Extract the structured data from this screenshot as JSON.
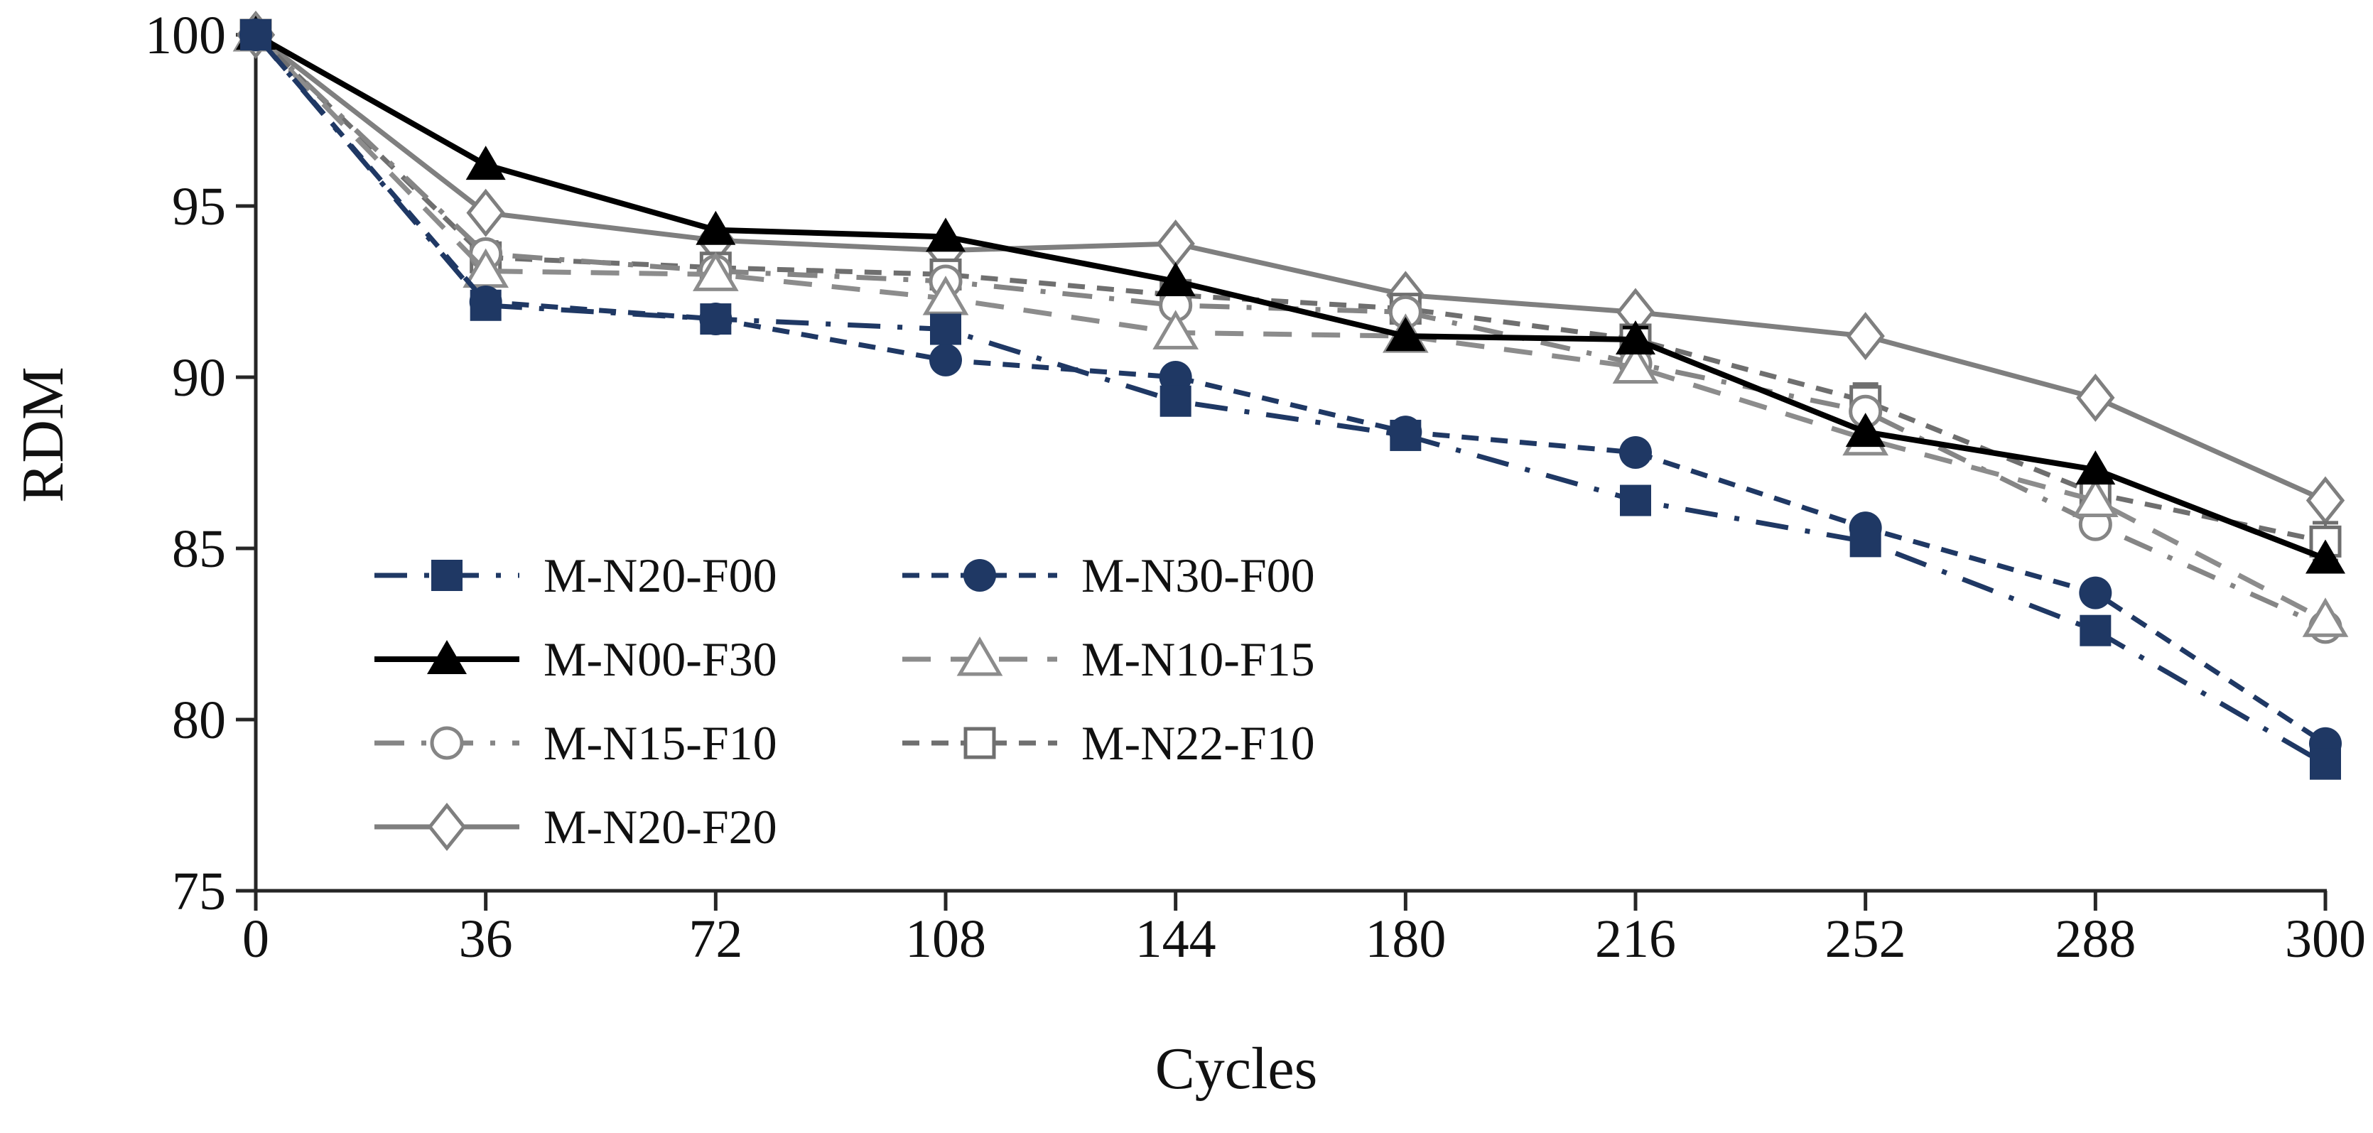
{
  "figure": {
    "background": "#ffffff"
  },
  "chart_data": {
    "type": "line",
    "title": "",
    "xlabel": "Cycles",
    "ylabel": "RDM",
    "x_categories": [
      0,
      36,
      72,
      108,
      144,
      180,
      216,
      252,
      288,
      300
    ],
    "x_tick_labels": [
      "0",
      "36",
      "72",
      "108",
      "144",
      "180",
      "216",
      "252",
      "288",
      "300"
    ],
    "yticks": [
      75,
      80,
      85,
      90,
      95,
      100
    ],
    "ytick_labels": [
      "75",
      "80",
      "85",
      "90",
      "95",
      "100"
    ],
    "ylim": [
      75,
      100
    ],
    "grid": false,
    "axis_color": "#262626",
    "legend_position": "inside-left",
    "legend_rows": [
      [
        "M-N20-F00",
        "M-N30-F00"
      ],
      [
        "M-N00-F30",
        "M-N10-F15"
      ],
      [
        "M-N15-F10",
        "M-N22-F10"
      ],
      [
        "M-N20-F20"
      ]
    ],
    "series": [
      {
        "name": "M-N20-F00",
        "color": "#1f3864",
        "line_style": "dash-dot",
        "dash": "46 24 7 24",
        "marker": "square",
        "marker_fill": "filled",
        "values": [
          100,
          92.1,
          91.7,
          91.4,
          89.3,
          88.3,
          86.4,
          85.2,
          82.6,
          78.7
        ],
        "errors": null
      },
      {
        "name": "M-N30-F00",
        "color": "#1f3864",
        "line_style": "dashed",
        "dash": "24 17",
        "marker": "circle",
        "marker_fill": "filled",
        "values": [
          100,
          92.2,
          91.7,
          90.5,
          90.0,
          88.4,
          87.8,
          85.6,
          83.7,
          79.3
        ],
        "errors": null
      },
      {
        "name": "M-N00-F30",
        "color": "#000000",
        "line_style": "solid",
        "dash": null,
        "marker": "triangle",
        "marker_fill": "filled",
        "values": [
          100,
          96.2,
          94.3,
          94.1,
          92.8,
          91.2,
          91.1,
          88.4,
          87.3,
          84.7
        ],
        "errors": [
          0,
          0,
          0,
          0,
          0,
          0,
          0.35,
          0,
          0,
          0
        ]
      },
      {
        "name": "M-N10-F15",
        "color": "#8c8c8c",
        "line_style": "dashed",
        "dash": "40 28",
        "marker": "triangle",
        "marker_fill": "open",
        "values": [
          100,
          93.1,
          93.0,
          92.3,
          91.3,
          91.2,
          90.3,
          88.2,
          86.4,
          82.9
        ],
        "errors": null
      },
      {
        "name": "M-N15-F10",
        "color": "#858585",
        "line_style": "dash-dot",
        "dash": "42 24 7 24",
        "marker": "circle",
        "marker_fill": "open",
        "values": [
          100,
          93.6,
          93.1,
          92.8,
          92.1,
          91.9,
          90.4,
          89.0,
          85.7,
          82.7
        ],
        "errors": null
      },
      {
        "name": "M-N22-F10",
        "color": "#6f6f6f",
        "line_style": "dashed",
        "dash": "24 17",
        "marker": "square",
        "marker_fill": "open",
        "values": [
          100,
          93.5,
          93.2,
          93.0,
          92.4,
          92.0,
          91.1,
          89.3,
          86.6,
          85.2
        ],
        "errors": [
          0,
          0.45,
          0.25,
          0.35,
          0,
          0.3,
          0.3,
          0.5,
          0.3,
          0.55
        ]
      },
      {
        "name": "M-N20-F20",
        "color": "#7f7f7f",
        "line_style": "solid",
        "dash": null,
        "marker": "diamond",
        "marker_fill": "open",
        "values": [
          100,
          94.8,
          94.0,
          93.7,
          93.9,
          92.4,
          91.9,
          91.2,
          89.4,
          86.4
        ],
        "errors": null
      }
    ]
  }
}
